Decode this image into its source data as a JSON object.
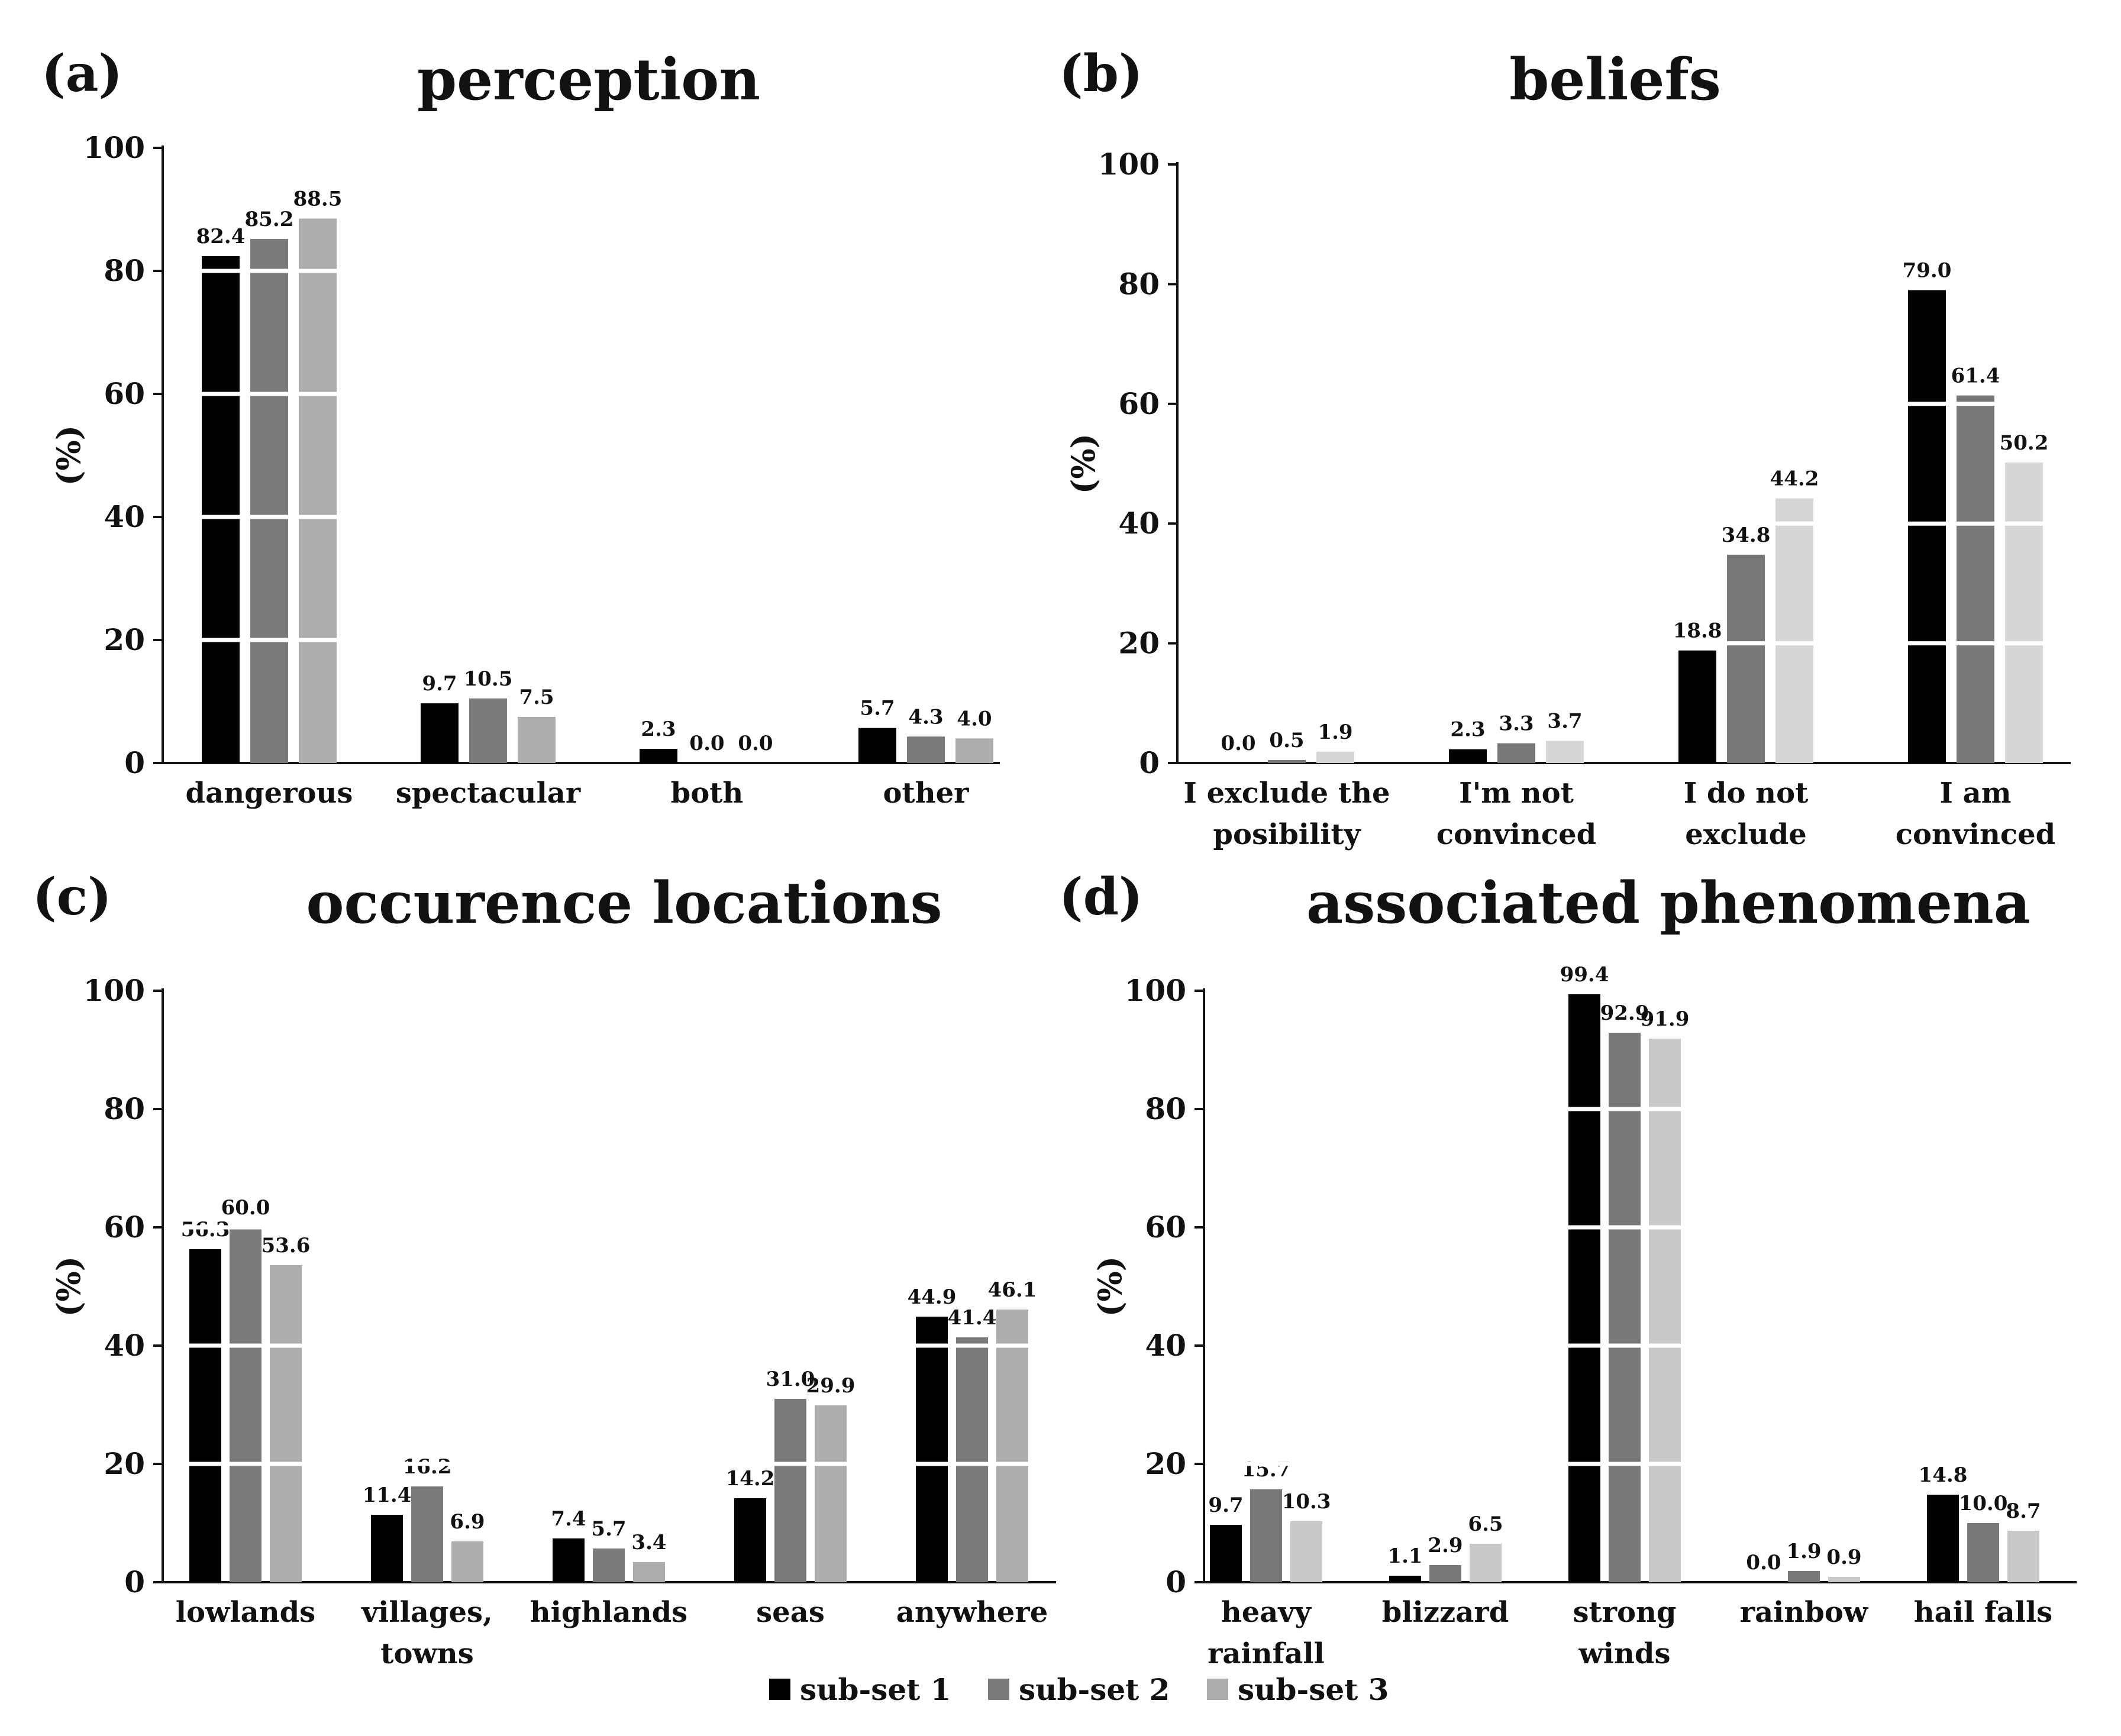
{
  "legend": [
    {
      "name": "sub-set 1",
      "color": "#000000"
    },
    {
      "name": "sub-set 2",
      "color": "#7a7a7a"
    },
    {
      "name": "sub-set 3",
      "color": "#adadad"
    }
  ],
  "chart_data": [
    {
      "type": "bar",
      "panel": "(a)",
      "title": "perception",
      "ylabel": "(%)",
      "ylim": [
        0,
        100
      ],
      "yticks": [
        0,
        20,
        40,
        60,
        80,
        100
      ],
      "categories": [
        [
          "dangerous"
        ],
        [
          "spectacular"
        ],
        [
          "both"
        ],
        [
          "other"
        ]
      ],
      "series": [
        {
          "name": "sub-set 1",
          "values": [
            82.4,
            9.7,
            2.3,
            5.7
          ],
          "labels": [
            "82.4",
            "9.7",
            "2.3",
            "5.7"
          ]
        },
        {
          "name": "sub-set 2",
          "values": [
            85.2,
            10.5,
            0.0,
            4.3
          ],
          "labels": [
            "85.2",
            "10.5",
            "0.0",
            "4.3"
          ]
        },
        {
          "name": "sub-set 3",
          "values": [
            88.5,
            7.5,
            0.0,
            4.0
          ],
          "labels": [
            "88.5",
            "7.5",
            "0.0",
            "4.0"
          ]
        }
      ],
      "colors": [
        "#000000",
        "#7a7a7a",
        "#adadad"
      ]
    },
    {
      "type": "bar",
      "panel": "(b)",
      "title": "beliefs",
      "ylabel": "(%)",
      "ylim": [
        0,
        100
      ],
      "yticks": [
        0,
        20,
        40,
        60,
        80,
        100
      ],
      "categories": [
        [
          "I exclude the",
          "posibility"
        ],
        [
          "I'm not",
          "convinced"
        ],
        [
          "I do not",
          "exclude"
        ],
        [
          "I am",
          "convinced"
        ]
      ],
      "series": [
        {
          "name": "sub-set 1",
          "values": [
            0.0,
            2.3,
            18.8,
            79.0
          ],
          "labels": [
            "0.0",
            "2.3",
            "18.8",
            "79.0"
          ]
        },
        {
          "name": "sub-set 2",
          "values": [
            0.5,
            3.3,
            34.8,
            61.4
          ],
          "labels": [
            "0.5",
            "3.3",
            "34.8",
            "61.4"
          ]
        },
        {
          "name": "sub-set 3",
          "values": [
            1.9,
            3.7,
            44.2,
            50.2
          ],
          "labels": [
            "1.9",
            "3.7",
            "44.2",
            "50.2"
          ]
        }
      ],
      "colors": [
        "#000000",
        "#777777",
        "#d6d6d6"
      ]
    },
    {
      "type": "bar",
      "panel": "(c)",
      "title": "occurence locations",
      "ylabel": "(%)",
      "ylim": [
        0,
        100
      ],
      "yticks": [
        0,
        20,
        40,
        60,
        80,
        100
      ],
      "categories": [
        [
          "lowlands"
        ],
        [
          "villages,",
          "towns"
        ],
        [
          "highlands"
        ],
        [
          "seas"
        ],
        [
          "anywhere"
        ]
      ],
      "series": [
        {
          "name": "sub-set 1",
          "values": [
            56.3,
            11.4,
            7.4,
            14.2,
            44.9
          ],
          "labels": [
            "56.3",
            "11.4",
            "7.4",
            "14.2",
            "44.9"
          ]
        },
        {
          "name": "sub-set 2",
          "values": [
            60.0,
            16.2,
            5.7,
            31.0,
            41.4
          ],
          "labels": [
            "60.0",
            "16.2",
            "5.7",
            "31.0",
            "41.4"
          ]
        },
        {
          "name": "sub-set 3",
          "values": [
            53.6,
            6.9,
            3.4,
            29.9,
            46.1
          ],
          "labels": [
            "53.6",
            "6.9",
            "3.4",
            "29.9",
            "46.1"
          ]
        }
      ],
      "colors": [
        "#000000",
        "#7a7a7a",
        "#adadad"
      ]
    },
    {
      "type": "bar",
      "panel": "(d)",
      "title": "associated phenomena",
      "ylabel": "(%)",
      "ylim": [
        0,
        100
      ],
      "yticks": [
        0,
        20,
        40,
        60,
        80,
        100
      ],
      "categories": [
        [
          "heavy",
          "rainfall"
        ],
        [
          "blizzard"
        ],
        [
          "strong",
          "winds"
        ],
        [
          "rainbow"
        ],
        [
          "hail falls"
        ]
      ],
      "series": [
        {
          "name": "sub-set 1",
          "values": [
            9.7,
            1.1,
            99.4,
            0.0,
            14.8
          ],
          "labels": [
            "9.7",
            "1.1",
            "99.4",
            "0.0",
            "14.8"
          ]
        },
        {
          "name": "sub-set 2",
          "values": [
            15.7,
            2.9,
            92.9,
            1.9,
            10.0
          ],
          "labels": [
            "15.7",
            "2.9",
            "92.9",
            "1.9",
            "10.0"
          ]
        },
        {
          "name": "sub-set 3",
          "values": [
            10.3,
            6.5,
            91.9,
            0.9,
            8.7
          ],
          "labels": [
            "10.3",
            "6.5",
            "91.9",
            "0.9",
            "8.7"
          ]
        }
      ],
      "colors": [
        "#000000",
        "#777777",
        "#c8c8c8"
      ]
    }
  ]
}
